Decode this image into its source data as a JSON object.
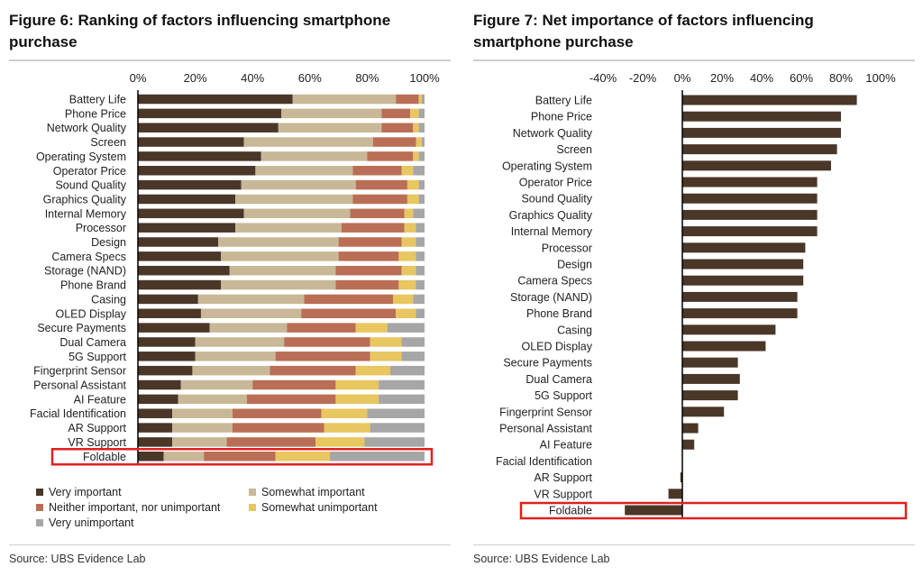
{
  "figure6": {
    "title_line1": "Figure 6: Ranking of factors influencing smartphone",
    "title_line2": "purchase",
    "source": "Source: UBS Evidence Lab",
    "legend": [
      {
        "label": "Very important",
        "color": "#4a3728"
      },
      {
        "label": "Somewhat important",
        "color": "#c8b897"
      },
      {
        "label": "Neither important, nor unimportant",
        "color": "#b96e55"
      },
      {
        "label": "Somewhat unimportant",
        "color": "#e8c660"
      },
      {
        "label": "Very unimportant",
        "color": "#a6a6a6"
      }
    ]
  },
  "figure7": {
    "title_line1": "Figure 7: Net importance of factors influencing",
    "title_line2": "smartphone purchase",
    "source": "Source: UBS Evidence Lab"
  },
  "highlight_color": "#e0201e",
  "chart_data": [
    {
      "type": "bar",
      "orientation": "horizontal",
      "stacked": true,
      "title": "Figure 6: Ranking of factors influencing smartphone purchase",
      "xlim": [
        0,
        100
      ],
      "x_ticks": [
        "0%",
        "20%",
        "40%",
        "60%",
        "80%",
        "100%"
      ],
      "x_axis_position": "top",
      "highlighted_category": "Foldable",
      "categories": [
        "Battery Life",
        "Phone Price",
        "Network Quality",
        "Screen",
        "Operating System",
        "Operator Price",
        "Sound Quality",
        "Graphics Quality",
        "Internal Memory",
        "Processor",
        "Design",
        "Camera Specs",
        "Storage (NAND)",
        "Phone Brand",
        "Casing",
        "OLED Display",
        "Secure Payments",
        "Dual Camera",
        "5G Support",
        "Fingerprint Sensor",
        "Personal Assistant",
        "AI Feature",
        "Facial Identification",
        "AR Support",
        "VR Support",
        "Foldable"
      ],
      "series": [
        {
          "name": "Very important",
          "color": "#4a3728",
          "values": [
            54,
            50,
            49,
            37,
            43,
            41,
            36,
            34,
            37,
            34,
            28,
            29,
            32,
            29,
            21,
            22,
            25,
            20,
            20,
            19,
            15,
            14,
            12,
            12,
            12,
            9
          ]
        },
        {
          "name": "Somewhat important",
          "color": "#c8b897",
          "values": [
            36,
            35,
            36,
            45,
            37,
            34,
            40,
            41,
            37,
            37,
            42,
            41,
            37,
            40,
            37,
            35,
            27,
            31,
            28,
            27,
            25,
            24,
            21,
            21,
            19,
            14
          ]
        },
        {
          "name": "Neither important, nor unimportant",
          "color": "#b96e55",
          "values": [
            8,
            10,
            11,
            15,
            16,
            17,
            18,
            19,
            19,
            22,
            22,
            21,
            23,
            22,
            31,
            33,
            24,
            30,
            33,
            30,
            29,
            31,
            31,
            32,
            31,
            25
          ]
        },
        {
          "name": "Somewhat unimportant",
          "color": "#e8c660",
          "values": [
            1,
            3,
            2,
            2,
            2,
            4,
            4,
            4,
            3,
            4,
            5,
            6,
            5,
            6,
            7,
            7,
            11,
            11,
            11,
            12,
            15,
            15,
            16,
            16,
            17,
            19
          ]
        },
        {
          "name": "Very unimportant",
          "color": "#a6a6a6",
          "values": [
            1,
            2,
            2,
            1,
            2,
            4,
            2,
            2,
            4,
            3,
            3,
            3,
            3,
            3,
            4,
            3,
            13,
            8,
            8,
            12,
            16,
            16,
            20,
            19,
            21,
            33
          ]
        }
      ]
    },
    {
      "type": "bar",
      "orientation": "horizontal",
      "title": "Figure 7: Net importance of factors influencing smartphone purchase",
      "xlim": [
        -40,
        100
      ],
      "x_ticks": [
        "-40%",
        "-20%",
        "0%",
        "20%",
        "40%",
        "60%",
        "80%",
        "100%"
      ],
      "x_axis_position": "top",
      "highlighted_category": "Foldable",
      "bar_color": "#4a3728",
      "categories": [
        "Battery Life",
        "Phone Price",
        "Network Quality",
        "Screen",
        "Operating System",
        "Operator Price",
        "Sound Quality",
        "Graphics Quality",
        "Internal Memory",
        "Processor",
        "Design",
        "Camera Specs",
        "Storage (NAND)",
        "Phone Brand",
        "Casing",
        "OLED Display",
        "Secure Payments",
        "Dual Camera",
        "5G Support",
        "Fingerprint Sensor",
        "Personal Assistant",
        "AI Feature",
        "Facial Identification",
        "AR Support",
        "VR Support",
        "Foldable"
      ],
      "values": [
        88,
        80,
        80,
        78,
        75,
        68,
        68,
        68,
        68,
        62,
        61,
        61,
        58,
        58,
        47,
        42,
        28,
        29,
        28,
        21,
        8,
        6,
        0,
        -1,
        -7,
        -29
      ]
    }
  ]
}
